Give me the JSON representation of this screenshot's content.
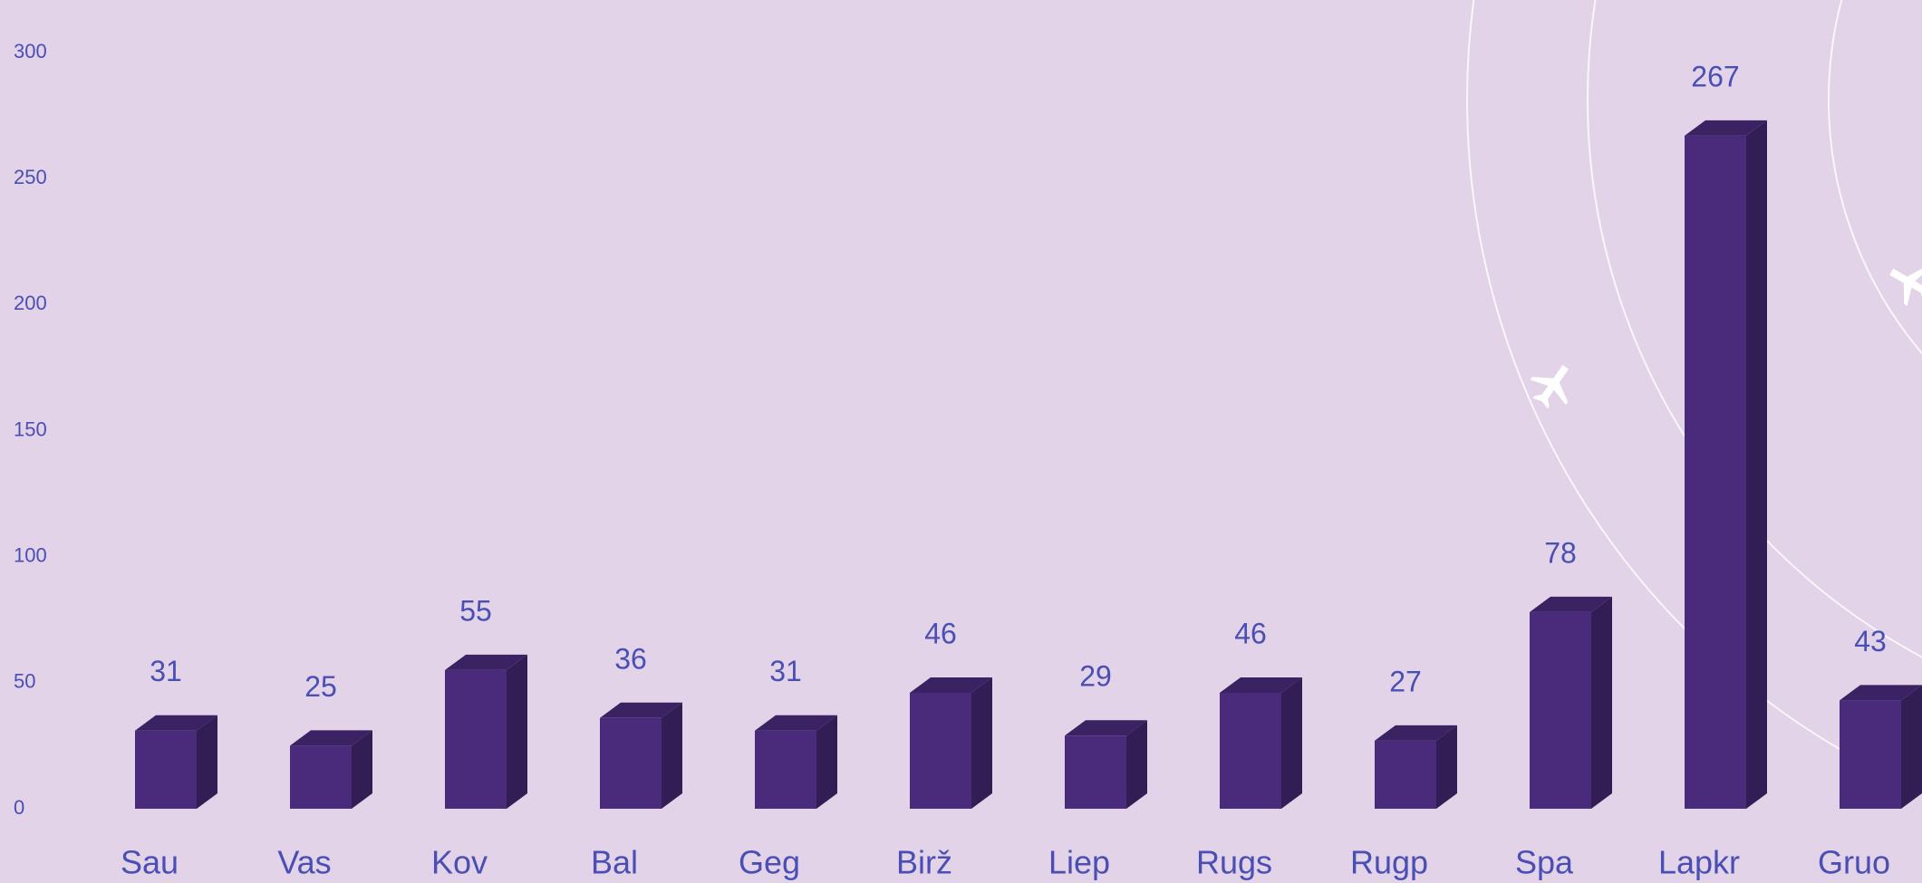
{
  "chart_data": {
    "type": "bar",
    "categories": [
      "Sau",
      "Vas",
      "Kov",
      "Bal",
      "Geg",
      "Birž",
      "Liep",
      "Rugs",
      "Rugp",
      "Spa",
      "Lapkr",
      "Gruo"
    ],
    "values": [
      31,
      25,
      55,
      36,
      31,
      46,
      29,
      46,
      27,
      78,
      267,
      43
    ],
    "color": "#4a2a7a",
    "ylim": [
      0,
      300
    ],
    "yticks": [
      0,
      50,
      100,
      150,
      200,
      250,
      300
    ],
    "grid": false
  }
}
